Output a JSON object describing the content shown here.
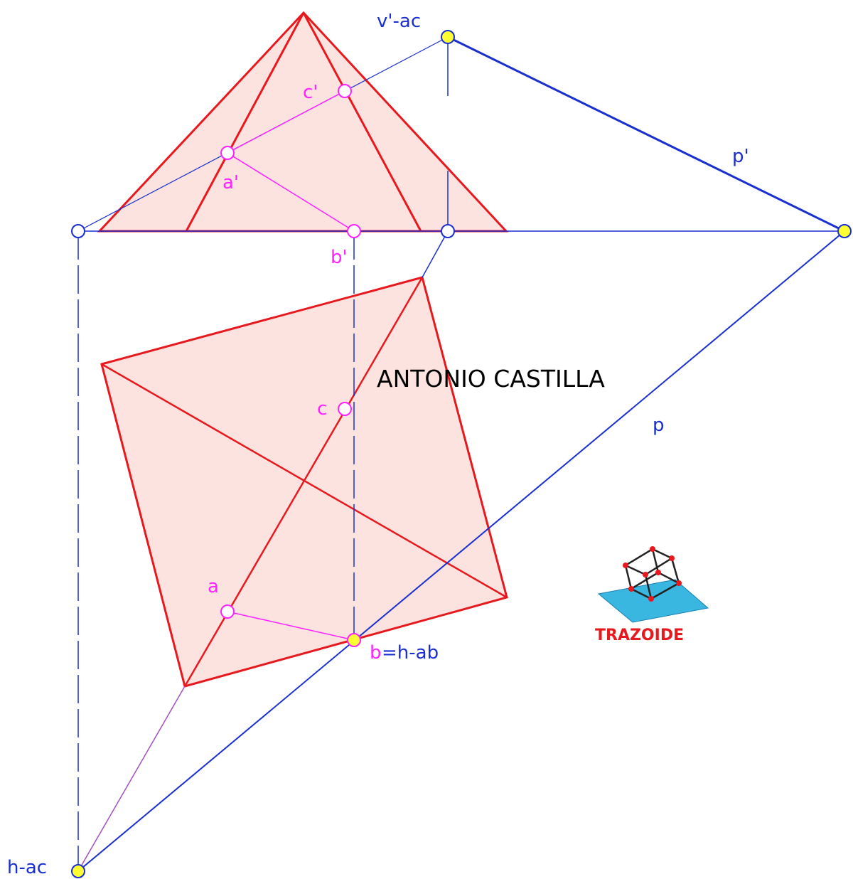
{
  "labels": {
    "v_ac": "v'-ac",
    "c_prime": "c'",
    "a_prime": "a'",
    "b_prime": "b'",
    "p_prime": "p'",
    "author": "ANTONIO CASTILLA",
    "c": "c",
    "p": "p",
    "a": "a",
    "b": "b",
    "h_ab": "=h-ab",
    "logo": "TRAZOIDE",
    "h_ac": "h-ac"
  }
}
